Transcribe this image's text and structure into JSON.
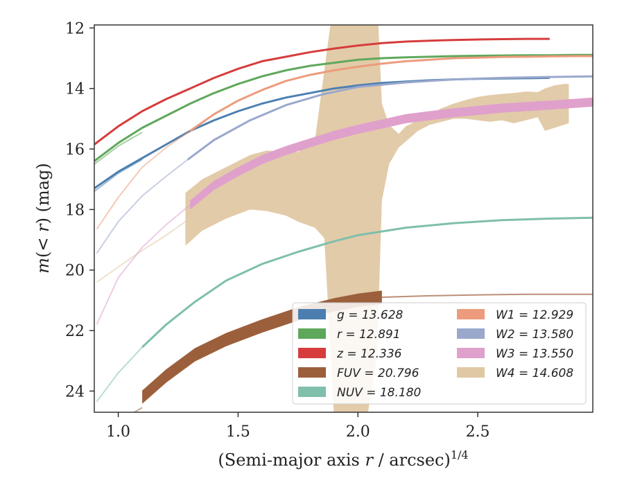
{
  "chart_data": {
    "type": "line",
    "xlabel": "(Semi-major axis r / arcsec)^1/4",
    "ylabel": "m(< r) (mag)",
    "xlim": [
      0.9,
      2.98
    ],
    "ylim": [
      24.7,
      11.9
    ],
    "y_inverted": true,
    "xticks": [
      1.0,
      1.5,
      2.0,
      2.5
    ],
    "xtick_labels": [
      "1.0",
      "1.5",
      "2.0",
      "2.5"
    ],
    "yticks": [
      12,
      14,
      16,
      18,
      20,
      22,
      24
    ],
    "ytick_labels": [
      "12",
      "14",
      "16",
      "18",
      "20",
      "22",
      "24"
    ],
    "grid": false,
    "legend_placement": "lower-right",
    "series": [
      {
        "name": "g = 13.628",
        "color": "#4c7fb0",
        "band_halfwidth": 0.06,
        "faint": {
          "x": [
            0.9,
            1.0,
            1.1
          ],
          "y": [
            17.4,
            16.8,
            16.35
          ]
        },
        "x": [
          0.9,
          1.0,
          1.1,
          1.2,
          1.3,
          1.4,
          1.5,
          1.6,
          1.7,
          1.8,
          1.9,
          2.0,
          2.1,
          2.2,
          2.3,
          2.4,
          2.5,
          2.6,
          2.7,
          2.8
        ],
        "y": [
          17.3,
          16.75,
          16.3,
          15.85,
          15.4,
          15.05,
          14.75,
          14.5,
          14.3,
          14.15,
          14.0,
          13.9,
          13.82,
          13.77,
          13.73,
          13.7,
          13.68,
          13.67,
          13.66,
          13.65
        ]
      },
      {
        "name": "r = 12.891",
        "color": "#5fa85b",
        "band_halfwidth": 0.06,
        "faint": {
          "x": [
            0.9,
            1.0,
            1.1
          ],
          "y": [
            16.5,
            15.9,
            15.45
          ]
        },
        "x": [
          0.9,
          1.0,
          1.1,
          1.2,
          1.3,
          1.4,
          1.5,
          1.6,
          1.7,
          1.8,
          1.9,
          2.0,
          2.1,
          2.2,
          2.3,
          2.4,
          2.5,
          2.6,
          2.7,
          2.8,
          2.9,
          2.98
        ],
        "y": [
          16.4,
          15.8,
          15.3,
          14.9,
          14.5,
          14.15,
          13.85,
          13.6,
          13.4,
          13.25,
          13.15,
          13.05,
          13.0,
          12.97,
          12.95,
          12.93,
          12.92,
          12.91,
          12.9,
          12.9,
          12.89,
          12.89
        ]
      },
      {
        "name": "z = 12.336",
        "color": "#d63c3c",
        "band_halfwidth": 0.06,
        "faint": null,
        "x": [
          0.9,
          1.0,
          1.1,
          1.2,
          1.3,
          1.4,
          1.5,
          1.6,
          1.7,
          1.8,
          1.9,
          2.0,
          2.1,
          2.2,
          2.3,
          2.4,
          2.5,
          2.6,
          2.7,
          2.8
        ],
        "y": [
          15.85,
          15.25,
          14.75,
          14.35,
          14.0,
          13.65,
          13.35,
          13.1,
          12.95,
          12.8,
          12.68,
          12.58,
          12.5,
          12.45,
          12.42,
          12.4,
          12.38,
          12.37,
          12.36,
          12.36
        ]
      },
      {
        "name": "FUV = 20.796",
        "color": "#9c5f3c",
        "band_halfwidth": 0.22,
        "faint": {
          "x": [
            0.92,
            1.0,
            1.1
          ],
          "y": [
            25.6,
            25.0,
            24.55
          ]
        },
        "extension": {
          "x": [
            2.1,
            2.3,
            2.5,
            2.7,
            2.98
          ],
          "y": [
            20.9,
            20.85,
            20.82,
            20.8,
            20.8
          ]
        },
        "x": [
          1.1,
          1.2,
          1.32,
          1.45,
          1.6,
          1.75,
          1.9,
          2.0,
          2.1
        ],
        "y": [
          24.2,
          23.5,
          22.8,
          22.3,
          21.85,
          21.45,
          21.15,
          21.0,
          20.9
        ]
      },
      {
        "name": "NUV = 18.180",
        "color": "#7fbfab",
        "band_halfwidth": 0.06,
        "faint": {
          "x": [
            0.91,
            1.0,
            1.1
          ],
          "y": [
            24.35,
            23.4,
            22.55
          ]
        },
        "x": [
          1.1,
          1.2,
          1.32,
          1.45,
          1.6,
          1.75,
          1.9,
          2.0,
          2.2,
          2.4,
          2.6,
          2.8,
          2.98
        ],
        "y": [
          22.55,
          21.8,
          21.05,
          20.35,
          19.8,
          19.4,
          19.05,
          18.85,
          18.6,
          18.45,
          18.35,
          18.3,
          18.27
        ]
      },
      {
        "name": "W1 = 12.929",
        "color": "#ec9c7c",
        "band_halfwidth": 0.06,
        "faint": {
          "x": [
            0.91,
            1.0,
            1.1,
            1.2,
            1.3
          ],
          "y": [
            18.65,
            17.6,
            16.6,
            15.95,
            15.4
          ]
        },
        "x": [
          1.3,
          1.4,
          1.5,
          1.6,
          1.7,
          1.8,
          1.9,
          2.0,
          2.1,
          2.2,
          2.3,
          2.4,
          2.5,
          2.6,
          2.7,
          2.8,
          2.9,
          2.98
        ],
        "y": [
          15.4,
          14.85,
          14.4,
          14.05,
          13.75,
          13.55,
          13.4,
          13.28,
          13.18,
          13.1,
          13.05,
          13.0,
          12.98,
          12.96,
          12.95,
          12.94,
          12.93,
          12.93
        ]
      },
      {
        "name": "W2 = 13.580",
        "color": "#9aa8cc",
        "band_halfwidth": 0.06,
        "faint": {
          "x": [
            0.91,
            1.0,
            1.1,
            1.2,
            1.29
          ],
          "y": [
            19.45,
            18.4,
            17.55,
            16.9,
            16.35
          ]
        },
        "x": [
          1.29,
          1.4,
          1.55,
          1.7,
          1.85,
          2.0,
          2.2,
          2.4,
          2.6,
          2.8,
          2.98
        ],
        "y": [
          16.35,
          15.7,
          15.05,
          14.55,
          14.2,
          13.95,
          13.8,
          13.7,
          13.65,
          13.62,
          13.6
        ]
      },
      {
        "name": "W3 = 13.550",
        "color": "#e0a0cc",
        "band_halfwidth": 0.15,
        "faint": {
          "x": [
            0.91,
            1.0,
            1.1,
            1.2,
            1.3
          ],
          "y": [
            21.8,
            20.25,
            19.25,
            18.5,
            17.85
          ]
        },
        "x": [
          1.3,
          1.4,
          1.5,
          1.6,
          1.7,
          1.8,
          1.9,
          2.0,
          2.2,
          2.4,
          2.6,
          2.8,
          2.98
        ],
        "y": [
          17.85,
          17.2,
          16.75,
          16.35,
          16.05,
          15.8,
          15.55,
          15.35,
          15.0,
          14.8,
          14.65,
          14.55,
          14.45
        ]
      },
      {
        "name": "W4 = 14.608",
        "color": "#e0c8a4",
        "band_halfwidth": 0,
        "faint": {
          "x": [
            0.91,
            1.0,
            1.1,
            1.2,
            1.28
          ],
          "y": [
            20.4,
            19.9,
            19.35,
            18.85,
            18.4
          ]
        },
        "band_x": [
          1.28,
          1.35,
          1.45,
          1.55,
          1.62,
          1.7,
          1.75,
          1.82,
          1.86,
          1.9,
          1.95,
          2.0,
          2.04,
          2.08,
          2.1,
          2.13,
          2.17,
          2.2,
          2.25,
          2.3,
          2.35,
          2.4,
          2.45,
          2.5,
          2.55,
          2.6,
          2.65,
          2.7,
          2.75,
          2.78,
          2.82,
          2.86,
          2.88
        ],
        "band_upper": [
          17.45,
          17.0,
          16.6,
          16.2,
          16.05,
          16.1,
          16.1,
          15.75,
          13.4,
          11.0,
          11.0,
          11.0,
          11.0,
          11.0,
          14.5,
          15.2,
          15.5,
          15.25,
          15.05,
          14.85,
          14.65,
          14.5,
          14.38,
          14.28,
          14.22,
          14.18,
          14.15,
          14.1,
          14.12,
          14.0,
          13.9,
          13.85,
          13.85
        ],
        "band_lower": [
          19.2,
          18.7,
          18.3,
          18.0,
          18.05,
          18.2,
          18.4,
          18.6,
          18.95,
          24.8,
          24.8,
          24.8,
          24.8,
          22.8,
          17.7,
          16.5,
          15.95,
          15.75,
          15.4,
          15.2,
          15.1,
          15.0,
          15.0,
          15.05,
          15.1,
          15.05,
          15.15,
          15.05,
          14.95,
          15.4,
          15.3,
          15.2,
          15.15
        ]
      }
    ]
  }
}
